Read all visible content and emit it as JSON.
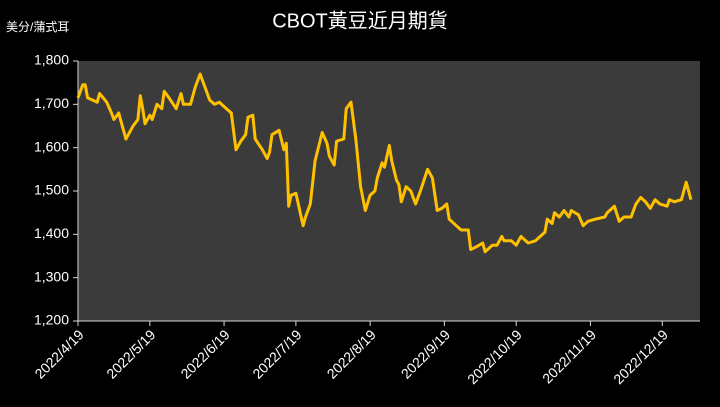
{
  "chart_data": {
    "type": "line",
    "title": "CBOT黃豆近月期貨",
    "y_label": "美分/蒲式耳",
    "color": "#ffc000",
    "x": [
      "2022/4/19",
      "2022/4/21",
      "2022/4/22",
      "2022/4/23",
      "2022/4/27",
      "2022/4/28",
      "2022/5/1",
      "2022/5/3",
      "2022/5/4",
      "2022/5/6",
      "2022/5/8",
      "2022/5/9",
      "2022/5/12",
      "2022/5/14",
      "2022/5/15",
      "2022/5/16",
      "2022/5/17",
      "2022/5/19",
      "2022/5/20",
      "2022/5/22",
      "2022/5/24",
      "2022/5/25",
      "2022/5/27",
      "2022/5/30",
      "2022/6/1",
      "2022/6/2",
      "2022/6/5",
      "2022/6/7",
      "2022/6/9",
      "2022/6/11",
      "2022/6/13",
      "2022/6/15",
      "2022/6/17",
      "2022/6/20",
      "2022/6/22",
      "2022/6/24",
      "2022/6/26",
      "2022/6/28",
      "2022/6/29",
      "2022/7/1",
      "2022/7/2",
      "2022/7/5",
      "2022/7/7",
      "2022/7/8",
      "2022/7/9",
      "2022/7/12",
      "2022/7/14",
      "2022/7/15",
      "2022/7/16",
      "2022/7/17",
      "2022/7/19",
      "2022/7/21",
      "2022/7/22",
      "2022/7/23",
      "2022/7/25",
      "2022/7/27",
      "2022/7/30",
      "2022/8/1",
      "2022/8/2",
      "2022/8/4",
      "2022/8/5",
      "2022/8/8",
      "2022/8/9",
      "2022/8/11",
      "2022/8/13",
      "2022/8/15",
      "2022/8/17",
      "2022/8/19",
      "2022/8/21",
      "2022/8/22",
      "2022/8/24",
      "2022/8/25",
      "2022/8/27",
      "2022/8/28",
      "2022/8/30",
      "2022/8/31",
      "2022/9/1",
      "2022/9/3",
      "2022/9/5",
      "2022/9/7",
      "2022/9/9",
      "2022/9/12",
      "2022/9/14",
      "2022/9/16",
      "2022/9/18",
      "2022/9/20",
      "2022/9/21",
      "2022/9/24",
      "2022/9/26",
      "2022/9/29",
      "2022/9/30",
      "2022/10/2",
      "2022/10/5",
      "2022/10/6",
      "2022/10/9",
      "2022/10/11",
      "2022/10/13",
      "2022/10/14",
      "2022/10/17",
      "2022/10/19",
      "2022/10/21",
      "2022/10/24",
      "2022/10/27",
      "2022/10/29",
      "2022/10/31",
      "2022/11/1",
      "2022/11/3",
      "2022/11/4",
      "2022/11/6",
      "2022/11/8",
      "2022/11/10",
      "2022/11/11",
      "2022/11/14",
      "2022/11/16",
      "2022/11/18",
      "2022/11/21",
      "2022/11/25",
      "2022/11/26",
      "2022/11/29",
      "2022/12/1",
      "2022/12/3",
      "2022/12/6",
      "2022/12/8",
      "2022/12/10",
      "2022/12/12",
      "2022/12/14",
      "2022/12/16",
      "2022/12/18",
      "2022/12/21",
      "2022/12/22",
      "2022/12/24",
      "2022/12/27",
      "2022/12/28",
      "2022/12/29",
      "2022/12/30",
      "2022/12/31"
    ],
    "values": [
      1715,
      1745,
      1745,
      1715,
      1705,
      1725,
      1705,
      1680,
      1665,
      1680,
      1640,
      1620,
      1650,
      1665,
      1720,
      1690,
      1655,
      1675,
      1665,
      1700,
      1690,
      1730,
      1715,
      1690,
      1725,
      1700,
      1700,
      1740,
      1770,
      1740,
      1710,
      1700,
      1705,
      1690,
      1680,
      1595,
      1615,
      1630,
      1670,
      1675,
      1620,
      1595,
      1575,
      1590,
      1630,
      1640,
      1595,
      1610,
      1465,
      1490,
      1495,
      1445,
      1420,
      1440,
      1470,
      1570,
      1635,
      1610,
      1580,
      1560,
      1615,
      1620,
      1690,
      1705,
      1620,
      1510,
      1455,
      1490,
      1500,
      1530,
      1565,
      1555,
      1605,
      1570,
      1525,
      1515,
      1475,
      1510,
      1500,
      1470,
      1500,
      1550,
      1530,
      1455,
      1460,
      1470,
      1435,
      1420,
      1410,
      1410,
      1365,
      1370,
      1380,
      1360,
      1375,
      1375,
      1395,
      1385,
      1385,
      1375,
      1395,
      1380,
      1385,
      1395,
      1405,
      1435,
      1425,
      1450,
      1440,
      1455,
      1440,
      1455,
      1445,
      1420,
      1430,
      1435,
      1440,
      1450,
      1465,
      1430,
      1440,
      1440,
      1470,
      1485,
      1475,
      1460,
      1480,
      1470,
      1465,
      1480,
      1475,
      1480,
      1500,
      1520,
      1500,
      1480
    ],
    "xlim": [
      "2022/4/19",
      "2022/12/31"
    ],
    "xticks": [
      "2022/4/19",
      "2022/5/19",
      "2022/6/19",
      "2022/7/19",
      "2022/8/19",
      "2022/9/19",
      "2022/10/19",
      "2022/11/19",
      "2022/12/19"
    ],
    "ylim": [
      1200,
      1800
    ],
    "yticks": [
      {
        "value": 1200,
        "label": "1,200"
      },
      {
        "value": 1300,
        "label": "1,300"
      },
      {
        "value": 1400,
        "label": "1,400"
      },
      {
        "value": 1500,
        "label": "1,500"
      },
      {
        "value": 1600,
        "label": "1,600"
      },
      {
        "value": 1700,
        "label": "1,700"
      },
      {
        "value": 1800,
        "label": "1,800"
      }
    ],
    "grid": false
  }
}
